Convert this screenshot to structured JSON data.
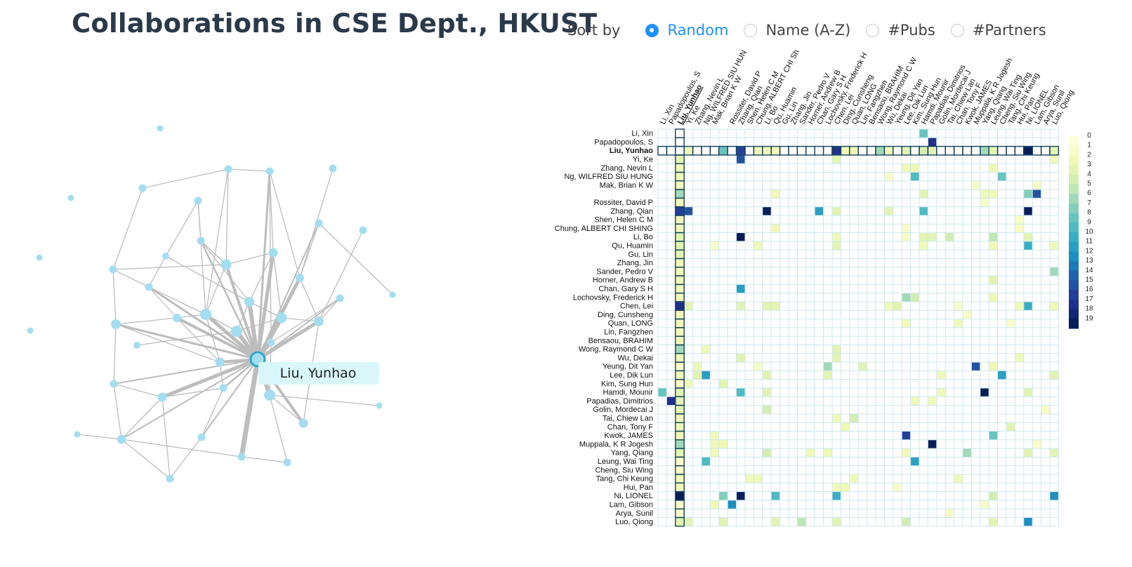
{
  "header": {
    "title": "Collaborations in CSE Dept., HKUST"
  },
  "sort": {
    "label": "Sort by",
    "options": [
      {
        "label": "Random",
        "selected": true
      },
      {
        "label": "Name (A-Z)",
        "selected": false
      },
      {
        "label": "#Pubs",
        "selected": false
      },
      {
        "label": "#Partners",
        "selected": false
      }
    ]
  },
  "colors": {
    "accent": "#1e90ff",
    "node": "#a3def0",
    "edge": "#bdbdbd",
    "highlight_border": "#16415a"
  },
  "tooltip": {
    "text": "Liu, Yunhao"
  },
  "chart_data": {
    "type": "heatmap",
    "highlight": "Liu, Yunhao",
    "names": [
      "Li, Xin",
      "Papadopoulos, S",
      "Liu, Yunhao",
      "Yi, Ke",
      "Zhang, Nevin L",
      "Ng, WILFRED SIU HUNG",
      "Mak, Brian K W",
      "",
      "Rossiter, David P",
      "Zhang, Qian",
      "Shen, Helen C M",
      "Chung, ALBERT CHI SHING",
      "Li, Bo",
      "Qu, Huamin",
      "Gu, Lin",
      "Zhang, Jin",
      "Sander, Pedro V",
      "Horner, Andrew B",
      "Chan, Gary S H",
      "Lochovsky, Frederick H",
      "Chen, Lei",
      "Ding, Cunsheng",
      "Quan, LONG",
      "Lin, Fangzhen",
      "Bensaou, BRAHIM",
      "Wong, Raymond C W",
      "Wu, Dekai",
      "Yeung, Dit Yan",
      "Lee, Dik Lun",
      "Kim, Sung Hun",
      "Hamdi, Mounir",
      "Papadias, Dimitrios",
      "Golin, Mordecai J",
      "Tai, Chiew Lan",
      "Chan, Tony F",
      "Kwok, JAMES",
      "Muppala, K R Jogesh",
      "Yang, Qiang",
      "Leung, Wai Ting",
      "Cheng, Siu Wing",
      "Tang, Chi Keung",
      "Hui, Pan",
      "Ni, LIONEL",
      "Lam, Gibson",
      "Arya, Sunil",
      "Luo, Qiong"
    ],
    "column_names": [
      "Li, Xin",
      "Papadopoulos, S",
      "Liu, Yunhao",
      "Yi, Ke",
      "Zhang, Nevin L",
      "Ng, WILFRED SIU HUN",
      "Mak, Brian K W",
      "",
      "Rossiter, David P",
      "Zhang, Qian",
      "Shen, Helen C M",
      "Chung, ALBERT CHI Sh",
      "Li, Bo",
      "Qu, Huamin",
      "Gu, Lin",
      "Zhang, Jin",
      "Sander, Pedro V",
      "Horner, Andrew B",
      "Chan, Gary S H",
      "Lochovsky, Frederick H",
      "Chen, Lei",
      "Ding, Cunsheng",
      "Quan, LONG",
      "Lin, Fangzhen",
      "Bensaou, BRAHIM",
      "Wong, Raymond C W",
      "Wu, Dekai",
      "Yeung, Dit Yan",
      "Lee, Dik Lun",
      "Kim, Sung Hun",
      "Hamdi, Mounir",
      "Papadias, Dimitrios",
      "Golin, Mordecai J",
      "Tai, Chiew Lan",
      "Chan, Tony F",
      "Kwok, JAMES",
      "Muppala, K R Jogesh",
      "Yang, Qiang",
      "Leung, Wai Ting",
      "Cheng, Siu Wing",
      "Tang, Chi Keung",
      "Hui, Pan",
      "Ni, LIONEL",
      "Lam, Gibson",
      "Arya, Sunil",
      "Luo, Qiong"
    ],
    "cells": [
      [
        0,
        30,
        8
      ],
      [
        1,
        31,
        17
      ],
      [
        2,
        3,
        2
      ],
      [
        2,
        7,
        8
      ],
      [
        2,
        9,
        16
      ],
      [
        2,
        11,
        2
      ],
      [
        2,
        12,
        2
      ],
      [
        2,
        13,
        2
      ],
      [
        2,
        20,
        17
      ],
      [
        2,
        21,
        2
      ],
      [
        2,
        22,
        2
      ],
      [
        2,
        25,
        6
      ],
      [
        2,
        26,
        2
      ],
      [
        2,
        28,
        3
      ],
      [
        2,
        30,
        4
      ],
      [
        2,
        31,
        3
      ],
      [
        2,
        37,
        6
      ],
      [
        2,
        38,
        3
      ],
      [
        2,
        42,
        19
      ],
      [
        2,
        45,
        3
      ],
      [
        3,
        2,
        3
      ],
      [
        3,
        9,
        15
      ],
      [
        3,
        20,
        3
      ],
      [
        3,
        45,
        2
      ],
      [
        4,
        2,
        2
      ],
      [
        4,
        28,
        2
      ],
      [
        4,
        29,
        2
      ],
      [
        4,
        38,
        2
      ],
      [
        5,
        2,
        2
      ],
      [
        5,
        26,
        1
      ],
      [
        5,
        29,
        9
      ],
      [
        5,
        39,
        8
      ],
      [
        6,
        2,
        2
      ],
      [
        6,
        36,
        1
      ],
      [
        6,
        43,
        1
      ],
      [
        7,
        2,
        6
      ],
      [
        7,
        13,
        2
      ],
      [
        7,
        30,
        3
      ],
      [
        7,
        37,
        2
      ],
      [
        7,
        38,
        2
      ],
      [
        7,
        42,
        7
      ],
      [
        7,
        43,
        15
      ],
      [
        8,
        2,
        2
      ],
      [
        8,
        37,
        1
      ],
      [
        9,
        2,
        16
      ],
      [
        9,
        3,
        15
      ],
      [
        9,
        12,
        19
      ],
      [
        9,
        18,
        11
      ],
      [
        9,
        20,
        3
      ],
      [
        9,
        26,
        3
      ],
      [
        9,
        30,
        9
      ],
      [
        9,
        42,
        19
      ],
      [
        10,
        2,
        2
      ],
      [
        10,
        41,
        1
      ],
      [
        11,
        2,
        2
      ],
      [
        11,
        13,
        2
      ],
      [
        11,
        28,
        1
      ],
      [
        11,
        41,
        1
      ],
      [
        12,
        2,
        3
      ],
      [
        12,
        9,
        19
      ],
      [
        12,
        20,
        2
      ],
      [
        12,
        28,
        1
      ],
      [
        12,
        30,
        3
      ],
      [
        12,
        31,
        3
      ],
      [
        12,
        33,
        4
      ],
      [
        12,
        38,
        5
      ],
      [
        12,
        42,
        3
      ],
      [
        13,
        2,
        3
      ],
      [
        13,
        6,
        1
      ],
      [
        13,
        11,
        2
      ],
      [
        13,
        20,
        3
      ],
      [
        13,
        30,
        2
      ],
      [
        13,
        38,
        2
      ],
      [
        13,
        42,
        10
      ],
      [
        13,
        45,
        2
      ],
      [
        14,
        2,
        3
      ],
      [
        15,
        2,
        2
      ],
      [
        16,
        2,
        2
      ],
      [
        16,
        45,
        6
      ],
      [
        17,
        2,
        2
      ],
      [
        17,
        38,
        3
      ],
      [
        18,
        2,
        2
      ],
      [
        18,
        9,
        11
      ],
      [
        19,
        2,
        2
      ],
      [
        19,
        28,
        6
      ],
      [
        19,
        29,
        4
      ],
      [
        19,
        38,
        2
      ],
      [
        20,
        2,
        17
      ],
      [
        20,
        3,
        3
      ],
      [
        20,
        9,
        3
      ],
      [
        20,
        12,
        3
      ],
      [
        20,
        13,
        3
      ],
      [
        20,
        26,
        2
      ],
      [
        20,
        27,
        3
      ],
      [
        20,
        34,
        1
      ],
      [
        20,
        41,
        2
      ],
      [
        20,
        42,
        10
      ],
      [
        20,
        45,
        2
      ],
      [
        21,
        2,
        2
      ],
      [
        21,
        35,
        1
      ],
      [
        22,
        2,
        2
      ],
      [
        22,
        28,
        2
      ],
      [
        22,
        34,
        2
      ],
      [
        22,
        40,
        1
      ],
      [
        23,
        2,
        2
      ],
      [
        24,
        2,
        2
      ],
      [
        25,
        2,
        6
      ],
      [
        25,
        5,
        2
      ],
      [
        25,
        20,
        3
      ],
      [
        26,
        2,
        2
      ],
      [
        26,
        9,
        3
      ],
      [
        26,
        20,
        3
      ],
      [
        26,
        41,
        2
      ],
      [
        27,
        2,
        1
      ],
      [
        27,
        4,
        2
      ],
      [
        27,
        11,
        1
      ],
      [
        27,
        19,
        6
      ],
      [
        27,
        23,
        3
      ],
      [
        27,
        36,
        15
      ],
      [
        27,
        38,
        2
      ],
      [
        28,
        2,
        2
      ],
      [
        28,
        4,
        3
      ],
      [
        28,
        5,
        11
      ],
      [
        28,
        12,
        3
      ],
      [
        28,
        19,
        3
      ],
      [
        28,
        32,
        2
      ],
      [
        28,
        39,
        11
      ],
      [
        28,
        45,
        3
      ],
      [
        29,
        2,
        1
      ],
      [
        29,
        3,
        2
      ],
      [
        29,
        7,
        3
      ],
      [
        30,
        0,
        8
      ],
      [
        30,
        2,
        3
      ],
      [
        30,
        9,
        9
      ],
      [
        30,
        12,
        3
      ],
      [
        30,
        32,
        2
      ],
      [
        30,
        37,
        19
      ],
      [
        30,
        42,
        3
      ],
      [
        31,
        1,
        17
      ],
      [
        31,
        2,
        3
      ],
      [
        31,
        29,
        2
      ],
      [
        31,
        31,
        2
      ],
      [
        32,
        2,
        3
      ],
      [
        32,
        12,
        4
      ],
      [
        32,
        44,
        1
      ],
      [
        33,
        2,
        2
      ],
      [
        33,
        20,
        2
      ],
      [
        33,
        22,
        4
      ],
      [
        34,
        2,
        2
      ],
      [
        34,
        21,
        2
      ],
      [
        34,
        40,
        3
      ],
      [
        35,
        2,
        2
      ],
      [
        35,
        6,
        2
      ],
      [
        35,
        28,
        16
      ],
      [
        35,
        38,
        8
      ],
      [
        36,
        2,
        6
      ],
      [
        36,
        6,
        2
      ],
      [
        36,
        7,
        2
      ],
      [
        36,
        31,
        19
      ],
      [
        36,
        43,
        1
      ],
      [
        37,
        2,
        3
      ],
      [
        37,
        6,
        2
      ],
      [
        37,
        12,
        4
      ],
      [
        37,
        17,
        2
      ],
      [
        37,
        19,
        2
      ],
      [
        37,
        28,
        2
      ],
      [
        37,
        35,
        6
      ],
      [
        37,
        42,
        3
      ],
      [
        37,
        45,
        3
      ],
      [
        38,
        2,
        1
      ],
      [
        38,
        5,
        9
      ],
      [
        38,
        29,
        11
      ],
      [
        39,
        2,
        1
      ],
      [
        40,
        2,
        2
      ],
      [
        40,
        10,
        2
      ],
      [
        40,
        11,
        2
      ],
      [
        40,
        22,
        2
      ],
      [
        40,
        34,
        2
      ],
      [
        41,
        2,
        2
      ],
      [
        41,
        20,
        2
      ],
      [
        41,
        21,
        2
      ],
      [
        41,
        27,
        1
      ],
      [
        42,
        2,
        19
      ],
      [
        42,
        7,
        7
      ],
      [
        42,
        9,
        19
      ],
      [
        42,
        13,
        9
      ],
      [
        42,
        20,
        10
      ],
      [
        42,
        38,
        4
      ],
      [
        42,
        45,
        12
      ],
      [
        43,
        2,
        1
      ],
      [
        43,
        6,
        2
      ],
      [
        43,
        8,
        12
      ],
      [
        43,
        37,
        1
      ],
      [
        44,
        2,
        1
      ],
      [
        44,
        33,
        1
      ],
      [
        45,
        2,
        3
      ],
      [
        45,
        3,
        3
      ],
      [
        45,
        7,
        3
      ],
      [
        45,
        13,
        3
      ],
      [
        45,
        16,
        5
      ],
      [
        45,
        20,
        3
      ],
      [
        45,
        28,
        4
      ],
      [
        45,
        38,
        3
      ],
      [
        45,
        42,
        12
      ]
    ],
    "legend": {
      "values": [
        0,
        1,
        2,
        3,
        4,
        5,
        6,
        7,
        8,
        9,
        10,
        11,
        12,
        13,
        14,
        15,
        16,
        17,
        18,
        19
      ]
    }
  }
}
